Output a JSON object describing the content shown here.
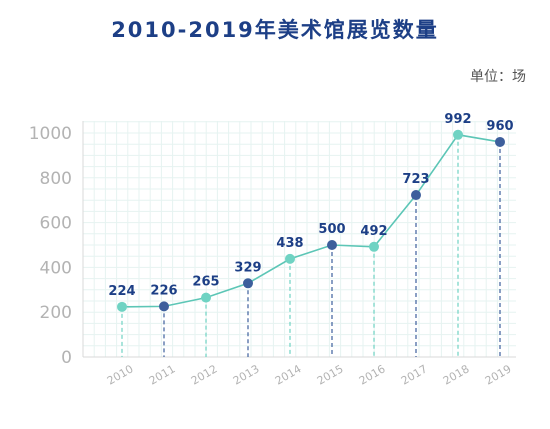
{
  "chart_title": "2010-2019年美术馆展览数量",
  "unit_label": "单位：场",
  "colors": {
    "title": "#1d3f86",
    "line": "#5cc6b6",
    "marker_teal": "#6fd3c3",
    "marker_navy": "#3d5f9c",
    "value_label": "#1d3f86",
    "axis_tick": "#b3b3b3",
    "grid": "#e6f3f1"
  },
  "chart_data": {
    "type": "line",
    "title": "2010-2019年美术馆展览数量",
    "unit": "单位：场",
    "x": [
      "2010",
      "2011",
      "2012",
      "2013",
      "2014",
      "2015",
      "2016",
      "2017",
      "2018",
      "2019"
    ],
    "values": [
      224,
      226,
      265,
      329,
      438,
      500,
      492,
      723,
      992,
      960
    ],
    "yticks": [
      "0",
      "200",
      "400",
      "600",
      "800",
      "1000"
    ],
    "ylim": [
      0,
      1000
    ],
    "grid": true,
    "marker_colors": [
      "teal",
      "navy",
      "teal",
      "navy",
      "teal",
      "navy",
      "teal",
      "navy",
      "teal",
      "navy"
    ]
  }
}
